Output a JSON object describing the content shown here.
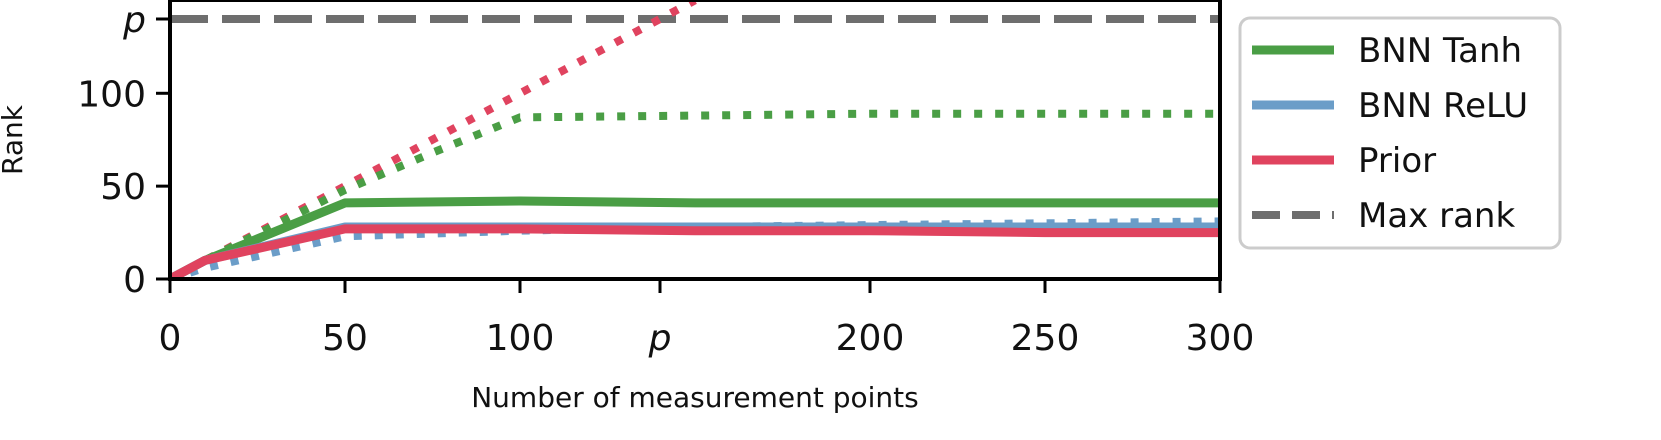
{
  "chart_data": {
    "type": "line",
    "title": "",
    "xlabel": "Number of measurement points",
    "ylabel": "Rank",
    "xlim": [
      0,
      300
    ],
    "ylim": [
      0,
      140
    ],
    "p_value": 140,
    "x_ticks": [
      {
        "value": 0,
        "label": "0",
        "italic": false
      },
      {
        "value": 50,
        "label": "50",
        "italic": false
      },
      {
        "value": 100,
        "label": "100",
        "italic": false
      },
      {
        "value": 140,
        "label": "p",
        "italic": true
      },
      {
        "value": 200,
        "label": "200",
        "italic": false
      },
      {
        "value": 250,
        "label": "250",
        "italic": false
      },
      {
        "value": 300,
        "label": "300",
        "italic": false
      }
    ],
    "y_ticks": [
      {
        "value": 0,
        "label": "0",
        "italic": false
      },
      {
        "value": 50,
        "label": "50",
        "italic": false
      },
      {
        "value": 100,
        "label": "100",
        "italic": false
      },
      {
        "value": 140,
        "label": "p",
        "italic": true
      }
    ],
    "legend": {
      "placement": "outside-right",
      "entries": [
        {
          "label": "BNN Tanh",
          "color": "#4a9e45",
          "style": "solid"
        },
        {
          "label": "BNN ReLU",
          "color": "#6b9dc8",
          "style": "solid"
        },
        {
          "label": "Prior",
          "color": "#e0435f",
          "style": "solid"
        },
        {
          "label": "Max rank",
          "color": "#6e6e6e",
          "style": "dashed"
        }
      ]
    },
    "series": [
      {
        "id": "max",
        "color": "#6e6e6e",
        "style": "dashed",
        "points": [
          [
            0,
            140
          ],
          [
            300,
            140
          ]
        ]
      },
      {
        "id": "prior-dotted",
        "color": "#e0435f",
        "style": "dotted",
        "points": [
          [
            0,
            0
          ],
          [
            10,
            10
          ],
          [
            50,
            50
          ],
          [
            100,
            100
          ],
          [
            150,
            150
          ]
        ]
      },
      {
        "id": "tanh-dotted",
        "color": "#4a9e45",
        "style": "dotted",
        "points": [
          [
            0,
            0
          ],
          [
            10,
            10
          ],
          [
            50,
            48
          ],
          [
            75,
            68
          ],
          [
            100,
            87
          ],
          [
            150,
            88
          ],
          [
            200,
            89
          ],
          [
            300,
            89
          ]
        ]
      },
      {
        "id": "relu-dotted",
        "color": "#6b9dc8",
        "style": "dotted",
        "points": [
          [
            0,
            0
          ],
          [
            10,
            6
          ],
          [
            50,
            23
          ],
          [
            100,
            26
          ],
          [
            150,
            28
          ],
          [
            200,
            29
          ],
          [
            250,
            30
          ],
          [
            300,
            31
          ]
        ]
      },
      {
        "id": "tanh-solid",
        "color": "#4a9e45",
        "style": "solid",
        "points": [
          [
            0,
            0
          ],
          [
            10,
            10
          ],
          [
            50,
            41
          ],
          [
            100,
            42
          ],
          [
            150,
            41
          ],
          [
            200,
            41
          ],
          [
            250,
            41
          ],
          [
            300,
            41
          ]
        ]
      },
      {
        "id": "relu-solid",
        "color": "#6b9dc8",
        "style": "solid",
        "points": [
          [
            0,
            0
          ],
          [
            10,
            10
          ],
          [
            50,
            28
          ],
          [
            100,
            28
          ],
          [
            150,
            28
          ],
          [
            200,
            28
          ],
          [
            250,
            28
          ],
          [
            300,
            28
          ]
        ]
      },
      {
        "id": "prior-solid",
        "color": "#e0435f",
        "style": "solid",
        "points": [
          [
            0,
            0
          ],
          [
            10,
            10
          ],
          [
            50,
            27
          ],
          [
            100,
            27
          ],
          [
            150,
            26
          ],
          [
            200,
            26
          ],
          [
            250,
            25
          ],
          [
            300,
            25
          ]
        ]
      }
    ]
  }
}
